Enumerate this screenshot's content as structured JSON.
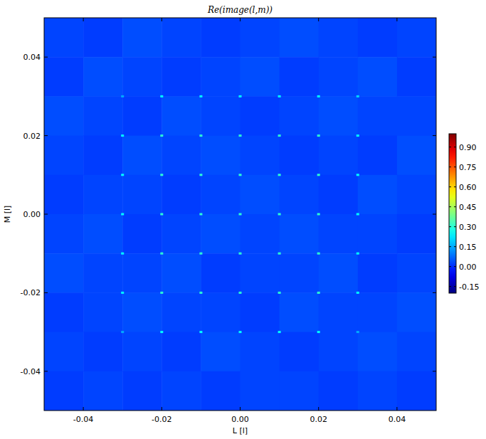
{
  "chart_data": {
    "type": "heatmap",
    "title": "Re(image(l,m))",
    "x_label": "L [l]",
    "y_label": "M [l]",
    "xlim": [
      -0.05,
      0.05
    ],
    "ylim": [
      -0.05,
      0.05
    ],
    "xticks": [
      -0.04,
      -0.02,
      {
        "value": 0,
        "label": "0.00"
      },
      0.02,
      0.04
    ],
    "yticks": [
      -0.04,
      -0.02,
      {
        "value": 0,
        "label": "0.00"
      },
      0.02,
      0.04
    ],
    "cells": [
      [
        0.03,
        0.02,
        0.04,
        0.03,
        0.02,
        0.03,
        0.04,
        0.03,
        0.02,
        0.03
      ],
      [
        0.02,
        0.04,
        0.03,
        0.02,
        0.03,
        0.04,
        0.02,
        0.03,
        0.04,
        0.02
      ],
      [
        0.04,
        0.03,
        0.02,
        0.04,
        0.03,
        0.02,
        0.03,
        0.04,
        0.03,
        0.03
      ],
      [
        0.03,
        0.02,
        0.04,
        0.03,
        0.04,
        0.03,
        0.02,
        0.03,
        0.02,
        0.04
      ],
      [
        0.02,
        0.03,
        0.03,
        0.02,
        0.03,
        0.04,
        0.03,
        0.02,
        0.04,
        0.03
      ],
      [
        0.03,
        0.04,
        0.02,
        0.03,
        0.04,
        0.03,
        0.04,
        0.03,
        0.03,
        0.02
      ],
      [
        0.04,
        0.03,
        0.03,
        0.04,
        0.02,
        0.03,
        0.03,
        0.04,
        0.02,
        0.03
      ],
      [
        0.02,
        0.03,
        0.04,
        0.03,
        0.03,
        0.02,
        0.04,
        0.03,
        0.03,
        0.04
      ],
      [
        0.03,
        0.02,
        0.03,
        0.02,
        0.04,
        0.03,
        0.02,
        0.03,
        0.04,
        0.03
      ],
      [
        0.02,
        0.03,
        0.02,
        0.03,
        0.02,
        0.03,
        0.03,
        0.02,
        0.03,
        0.02
      ]
    ],
    "sources": {
      "l": [
        -0.03,
        -0.02,
        -0.01,
        0,
        0.01,
        0.02,
        0.03,
        -0.03,
        -0.02,
        -0.01,
        0,
        0.01,
        0.02,
        0.03,
        -0.03,
        -0.02,
        -0.01,
        0,
        0.01,
        0.02,
        0.03,
        -0.03,
        -0.02,
        -0.01,
        0,
        0.01,
        0.02,
        0.03,
        -0.03,
        -0.02,
        -0.01,
        0,
        0.01,
        0.02,
        0.03,
        -0.03,
        -0.02,
        -0.01,
        0,
        0.01,
        0.02,
        0.03,
        -0.03,
        -0.02,
        -0.01,
        0,
        0.01,
        0.02,
        0.03
      ],
      "m": [
        0.03,
        0.03,
        0.03,
        0.03,
        0.03,
        0.03,
        0.03,
        0.02,
        0.02,
        0.02,
        0.02,
        0.02,
        0.02,
        0.02,
        0.01,
        0.01,
        0.01,
        0.01,
        0.01,
        0.01,
        0.01,
        0,
        0,
        0,
        0,
        0,
        0,
        0,
        -0.01,
        -0.01,
        -0.01,
        -0.01,
        -0.01,
        -0.01,
        -0.01,
        -0.02,
        -0.02,
        -0.02,
        -0.02,
        -0.02,
        -0.02,
        -0.02,
        -0.03,
        -0.03,
        -0.03,
        -0.03,
        -0.03,
        -0.03,
        -0.03
      ],
      "values": [
        0.15,
        0.25,
        0.25,
        0.25,
        0.25,
        0.25,
        0.2,
        0.25,
        0.3,
        0.3,
        0.3,
        0.3,
        0.3,
        0.25,
        0.25,
        0.3,
        0.3,
        0.3,
        0.3,
        0.3,
        0.25,
        0.25,
        0.3,
        0.3,
        0.3,
        0.3,
        0.3,
        0.25,
        0.25,
        0.3,
        0.3,
        0.3,
        0.3,
        0.3,
        0.25,
        0.25,
        0.3,
        0.3,
        0.3,
        0.3,
        0.3,
        0.25,
        0.15,
        0.25,
        0.25,
        0.25,
        0.25,
        0.25,
        0.15
      ]
    },
    "colorbar_lim": [
      -0.2,
      1.0
    ],
    "colorbar_ticks": [
      -0.15,
      {
        "value": 0,
        "label": "0.00"
      },
      0.15,
      {
        "value": 0.3,
        "label": "0.30"
      },
      0.45,
      {
        "value": 0.6,
        "label": "0.60"
      },
      0.75,
      {
        "value": 0.9,
        "label": "0.90"
      }
    ]
  }
}
